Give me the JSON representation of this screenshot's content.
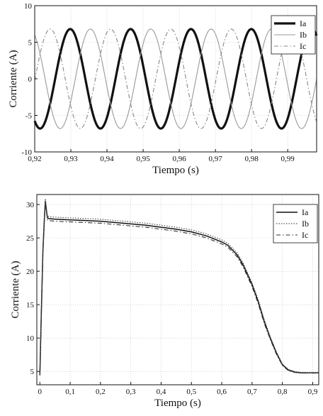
{
  "chart_data": [
    {
      "type": "line",
      "xlabel": "Tiempo (s)",
      "ylabel": "Corriente (A)",
      "xlim": [
        0.92,
        0.998
      ],
      "ylim": [
        -10,
        10
      ],
      "xticks": [
        0.92,
        0.93,
        0.94,
        0.95,
        0.96,
        0.97,
        0.98,
        0.99
      ],
      "xtick_labels": [
        "0,92",
        "0,93",
        "0,94",
        "0,95",
        "0,96",
        "0,97",
        "0,98",
        "0,99"
      ],
      "yticks": [
        -10,
        -5,
        0,
        5,
        10
      ],
      "ytick_labels": [
        "-10",
        "-5",
        "0",
        "5",
        "10"
      ],
      "grid": true,
      "legend_position": "top-right",
      "amplitude": 6.8,
      "period": 0.0167,
      "series": [
        {
          "name": "Ia",
          "style": "solid-thick",
          "color": "#111111",
          "phase_deg": -122,
          "x": [
            0.922,
            0.929,
            0.9374,
            0.9458,
            0.9541,
            0.9625,
            0.9708,
            0.9792,
            0.9875,
            0.996
          ],
          "y": [
            -6.8,
            6.8,
            -6.8,
            6.8,
            -6.8,
            6.8,
            -6.8,
            6.8,
            -6.8,
            6.8
          ]
        },
        {
          "name": "Ib",
          "style": "solid-thin",
          "color": "#999999",
          "phase_deg": 118,
          "x": [
            0.9245,
            0.9329,
            0.9412,
            0.9496,
            0.9579,
            0.9663,
            0.9746,
            0.983,
            0.9913
          ],
          "y": [
            6.8,
            -6.8,
            6.8,
            -6.8,
            6.8,
            -6.8,
            6.8,
            -6.8,
            6.8
          ]
        },
        {
          "name": "Ic",
          "style": "dash-dot",
          "color": "#888888",
          "phase_deg": -2,
          "x": [
            0.9218,
            0.9302,
            0.9385,
            0.9469,
            0.9552,
            0.9636,
            0.9719,
            0.9803,
            0.9886,
            0.997
          ],
          "y": [
            6.8,
            -6.8,
            6.8,
            -6.8,
            6.8,
            -6.8,
            6.8,
            -6.8,
            6.8,
            -6.8
          ]
        }
      ]
    },
    {
      "type": "line",
      "xlabel": "Tiempo (s)",
      "ylabel": "Corriente (A)",
      "xlim": [
        -0.01,
        0.92
      ],
      "ylim": [
        3,
        31.5
      ],
      "xticks": [
        0,
        0.1,
        0.2,
        0.3,
        0.4,
        0.5,
        0.6,
        0.7,
        0.8,
        0.9
      ],
      "xtick_labels": [
        "0",
        "0,1",
        "0,2",
        "0,3",
        "0,4",
        "0,5",
        "0,6",
        "0,7",
        "0,8",
        "0,9"
      ],
      "yticks": [
        5,
        10,
        15,
        20,
        25,
        30
      ],
      "ytick_labels": [
        "5",
        "10",
        "15",
        "20",
        "25",
        "30"
      ],
      "grid": true,
      "legend_position": "top-right",
      "series": [
        {
          "name": "Ia",
          "style": "solid",
          "color": "#111111",
          "x": [
            0,
            0.005,
            0.01,
            0.015,
            0.018,
            0.022,
            0.025,
            0.03,
            0.05,
            0.1,
            0.15,
            0.2,
            0.25,
            0.3,
            0.35,
            0.4,
            0.45,
            0.5,
            0.55,
            0.6,
            0.62,
            0.65,
            0.67,
            0.7,
            0.72,
            0.74,
            0.76,
            0.78,
            0.8,
            0.82,
            0.84,
            0.86,
            0.88,
            0.9,
            0.92
          ],
          "y": [
            4.5,
            14,
            23,
            28,
            30.5,
            29,
            28,
            27.9,
            27.8,
            27.7,
            27.6,
            27.5,
            27.3,
            27.1,
            26.9,
            26.6,
            26.3,
            25.9,
            25.3,
            24.4,
            23.9,
            22.5,
            21,
            18,
            15.5,
            12.5,
            10,
            7.8,
            6,
            5.2,
            4.9,
            4.8,
            4.8,
            4.8,
            4.8
          ]
        },
        {
          "name": "Ib",
          "style": "dotted",
          "color": "#555555",
          "x": [
            0,
            0.005,
            0.01,
            0.015,
            0.018,
            0.022,
            0.025,
            0.03,
            0.05,
            0.1,
            0.15,
            0.2,
            0.25,
            0.3,
            0.35,
            0.4,
            0.45,
            0.5,
            0.55,
            0.6,
            0.62,
            0.65,
            0.67,
            0.7,
            0.72,
            0.74,
            0.76,
            0.78,
            0.8,
            0.82,
            0.84,
            0.86,
            0.88,
            0.9,
            0.92
          ],
          "y": [
            4.6,
            14.5,
            23.5,
            28.4,
            30.9,
            29.3,
            28.3,
            28.2,
            28.1,
            28,
            27.9,
            27.8,
            27.6,
            27.4,
            27.2,
            26.9,
            26.6,
            26.2,
            25.6,
            24.7,
            24.2,
            22.8,
            21.3,
            18.3,
            15.8,
            12.8,
            10.2,
            8,
            6.1,
            5.3,
            5,
            4.85,
            4.8,
            4.8,
            4.8
          ]
        },
        {
          "name": "Ic",
          "style": "dash-dot",
          "color": "#333333",
          "x": [
            0,
            0.005,
            0.01,
            0.015,
            0.018,
            0.022,
            0.025,
            0.03,
            0.05,
            0.1,
            0.15,
            0.2,
            0.25,
            0.3,
            0.35,
            0.4,
            0.45,
            0.5,
            0.55,
            0.6,
            0.62,
            0.65,
            0.67,
            0.7,
            0.72,
            0.74,
            0.76,
            0.78,
            0.8,
            0.82,
            0.84,
            0.86,
            0.88,
            0.9,
            0.92
          ],
          "y": [
            4.4,
            13.5,
            22.5,
            27.7,
            30.2,
            28.8,
            27.7,
            27.6,
            27.5,
            27.4,
            27.3,
            27.2,
            27,
            26.8,
            26.6,
            26.3,
            26,
            25.6,
            25,
            24.1,
            23.6,
            22.2,
            20.7,
            17.7,
            15.2,
            12.2,
            9.8,
            7.6,
            5.9,
            5.1,
            4.85,
            4.75,
            4.75,
            4.75,
            4.75
          ]
        }
      ]
    }
  ]
}
